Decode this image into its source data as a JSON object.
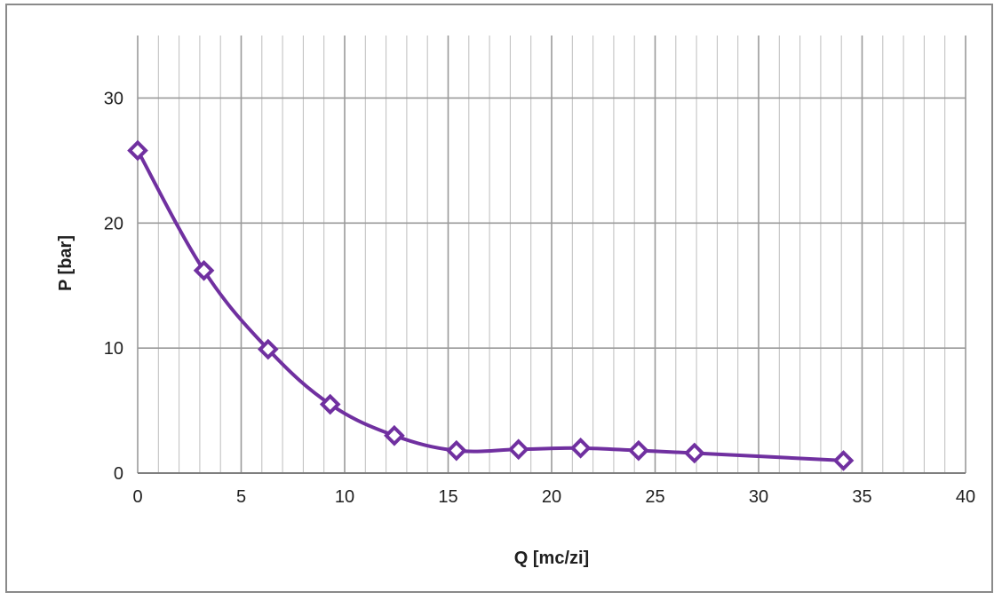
{
  "chart_data": {
    "type": "line",
    "title": "",
    "xlabel": "Q  [mc/zi]",
    "ylabel": "P [bar]",
    "xlim": [
      0,
      40
    ],
    "ylim": [
      0,
      35
    ],
    "x_ticks": [
      0,
      5,
      10,
      15,
      20,
      25,
      30,
      35,
      40
    ],
    "y_ticks": [
      0,
      10,
      20,
      30
    ],
    "x_minor_step": 1,
    "y_minor_step": 10,
    "grid": true,
    "legend": "none",
    "marker": "diamond-open",
    "series": [
      {
        "color": "#7030a0",
        "x": [
          0,
          3.2,
          6.3,
          9.3,
          12.4,
          15.4,
          18.4,
          21.4,
          24.2,
          26.9,
          34.1
        ],
        "y": [
          25.8,
          16.2,
          9.9,
          5.5,
          3.0,
          1.8,
          1.9,
          2.0,
          1.8,
          1.6,
          1.0
        ]
      }
    ]
  }
}
